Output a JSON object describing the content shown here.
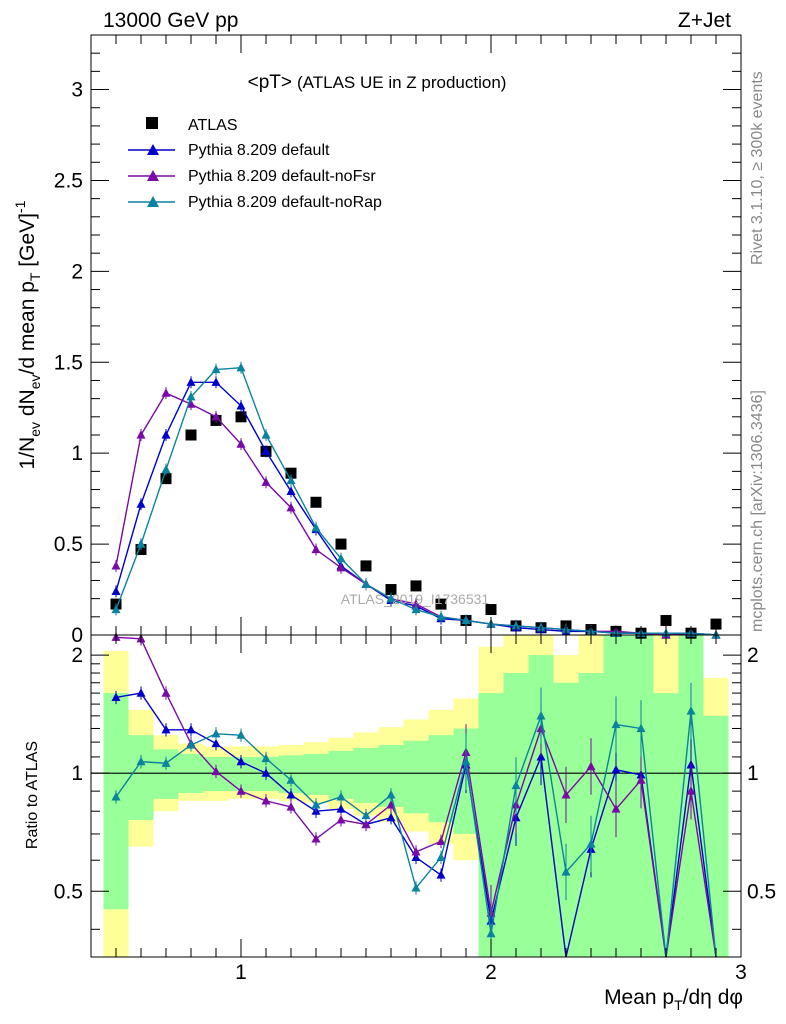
{
  "header": {
    "left": "13000 GeV pp",
    "right": "Z+Jet"
  },
  "plot_title": {
    "main": "<pT>",
    "sub": "(ATLAS UE in Z production)"
  },
  "side_labels": {
    "rivet": "Rivet 3.1.10, ≥ 300k events",
    "mcplots": "mcplots.cern.ch [arXiv:1306.3436]"
  },
  "watermark": "ATLAS_2019_I1736531",
  "colors": {
    "data": "#000000",
    "default": "#0000cc",
    "noFsr": "#7a0aa6",
    "noRap": "#0a82a0",
    "band_inner": "#99ff99",
    "band_outer": "#ffff99"
  },
  "chart_data": [
    {
      "type": "scatter",
      "panel": "main",
      "ylabel": "1/N_ev dN_ev/d mean p_T [GeV]^-1",
      "ylim": [
        0,
        3.3
      ],
      "xlim": [
        0.4,
        3.0
      ],
      "yticks": [
        "0",
        "0.5",
        "1",
        "1.5",
        "2",
        "2.5",
        "3"
      ],
      "x": [
        0.5,
        0.6,
        0.7,
        0.8,
        0.9,
        1.0,
        1.1,
        1.2,
        1.3,
        1.4,
        1.5,
        1.6,
        1.7,
        1.8,
        1.9,
        2.0,
        2.1,
        2.2,
        2.3,
        2.4,
        2.5,
        2.6,
        2.7,
        2.8,
        2.9
      ],
      "series": [
        {
          "name": "ATLAS",
          "marker": "square",
          "values": [
            0.17,
            0.47,
            0.86,
            1.1,
            1.18,
            1.2,
            1.01,
            0.89,
            0.73,
            0.5,
            0.38,
            0.25,
            0.27,
            0.17,
            0.08,
            0.14,
            0.05,
            0.04,
            0.05,
            0.03,
            0.02,
            0.01,
            0.08,
            0.01,
            0.06
          ]
        },
        {
          "name": "Pythia 8.209 default",
          "marker": "triangle",
          "values": [
            0.24,
            0.72,
            1.1,
            1.39,
            1.39,
            1.26,
            1.01,
            0.79,
            0.58,
            0.38,
            0.28,
            0.19,
            0.16,
            0.09,
            0.08,
            0.06,
            0.04,
            0.03,
            0.02,
            0.02,
            0.01,
            0.01,
            0.0,
            0.01,
            0.0
          ]
        },
        {
          "name": "Pythia 8.209 default-noFsr",
          "marker": "triangle",
          "values": [
            0.38,
            1.1,
            1.33,
            1.27,
            1.2,
            1.05,
            0.84,
            0.7,
            0.47,
            0.37,
            0.28,
            0.2,
            0.17,
            0.1,
            0.08,
            0.06,
            0.05,
            0.04,
            0.03,
            0.02,
            0.02,
            0.01,
            0.0,
            0.01,
            0.0
          ]
        },
        {
          "name": "Pythia 8.209 default-noRap",
          "marker": "triangle",
          "values": [
            0.14,
            0.5,
            0.91,
            1.31,
            1.46,
            1.47,
            1.1,
            0.85,
            0.59,
            0.42,
            0.28,
            0.2,
            0.14,
            0.1,
            0.08,
            0.06,
            0.05,
            0.04,
            0.03,
            0.02,
            0.01,
            0.01,
            0.01,
            0.01,
            0.0
          ]
        }
      ]
    },
    {
      "type": "line",
      "panel": "ratio",
      "ylabel": "Ratio to ATLAS",
      "xlabel": "Mean p_T/dη dφ",
      "ylim": [
        0.34,
        2.25
      ],
      "xlim": [
        0.4,
        3.0
      ],
      "yticks": [
        "0.5",
        "1",
        "2"
      ],
      "xticks": [
        "1",
        "2",
        "3"
      ],
      "reference_line": 1,
      "x": [
        0.5,
        0.6,
        0.7,
        0.8,
        0.9,
        1.0,
        1.1,
        1.2,
        1.3,
        1.4,
        1.5,
        1.6,
        1.7,
        1.8,
        1.9,
        2.0,
        2.1,
        2.2,
        2.3,
        2.4,
        2.5,
        2.6,
        2.7,
        2.8,
        2.9
      ],
      "bands": {
        "inner_lo": [
          0.45,
          0.76,
          0.86,
          0.89,
          0.9,
          0.9,
          0.9,
          0.89,
          0.88,
          0.86,
          0.84,
          0.82,
          0.79,
          0.75,
          0.7,
          0.34,
          0.34,
          0.34,
          0.34,
          0.34,
          0.34,
          0.34,
          0.34,
          0.34,
          0.34
        ],
        "inner_hi": [
          1.6,
          1.25,
          1.15,
          1.12,
          1.1,
          1.1,
          1.1,
          1.11,
          1.12,
          1.14,
          1.16,
          1.18,
          1.21,
          1.25,
          1.3,
          1.6,
          1.8,
          2.0,
          1.7,
          1.8,
          2.25,
          2.25,
          1.6,
          2.25,
          1.4
        ],
        "outer_lo": [
          0.34,
          0.65,
          0.8,
          0.85,
          0.85,
          0.86,
          0.86,
          0.85,
          0.84,
          0.81,
          0.78,
          0.75,
          0.71,
          0.66,
          0.6,
          0.34,
          0.34,
          0.34,
          0.34,
          0.34,
          0.34,
          0.34,
          0.34,
          0.34,
          0.34
        ],
        "outer_hi": [
          2.05,
          1.45,
          1.25,
          1.19,
          1.17,
          1.17,
          1.17,
          1.18,
          1.2,
          1.23,
          1.27,
          1.31,
          1.37,
          1.45,
          1.55,
          2.1,
          2.25,
          2.25,
          2.0,
          2.25,
          2.25,
          2.25,
          2.25,
          2.25,
          1.75
        ]
      },
      "series": [
        {
          "name": "Pythia 8.209 default",
          "values": [
            1.56,
            1.6,
            1.29,
            1.29,
            1.19,
            1.07,
            1.0,
            0.88,
            0.8,
            0.81,
            0.74,
            0.77,
            0.61,
            0.55,
            1.05,
            0.42,
            0.77,
            1.1,
            0.3,
            0.64,
            1.02,
            0.99,
            0.1,
            1.05,
            0.1
          ]
        },
        {
          "name": "Pythia 8.209 default-noFsr",
          "values": [
            2.22,
            2.2,
            1.6,
            1.19,
            1.01,
            0.9,
            0.85,
            0.82,
            0.68,
            0.76,
            0.74,
            0.83,
            0.63,
            0.67,
            1.13,
            0.44,
            0.83,
            1.3,
            0.88,
            1.04,
            0.81,
            0.96,
            0.1,
            0.9,
            0.1
          ]
        },
        {
          "name": "Pythia 8.209 default-noRap",
          "values": [
            0.87,
            1.07,
            1.06,
            1.18,
            1.26,
            1.25,
            1.09,
            0.96,
            0.83,
            0.87,
            0.78,
            0.88,
            0.51,
            0.61,
            1.07,
            0.39,
            0.93,
            1.4,
            0.56,
            0.66,
            1.33,
            1.3,
            0.1,
            1.44,
            0.1
          ]
        }
      ]
    }
  ]
}
